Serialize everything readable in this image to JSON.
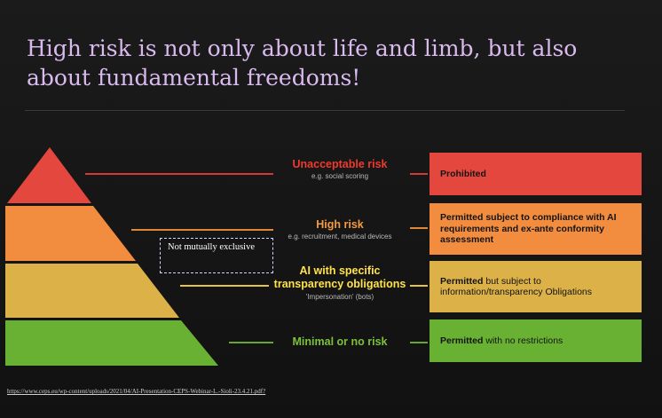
{
  "title": "High risk is not only about life and limb, but also about fundamental freedoms!",
  "colors": {
    "unacceptable": "#e4473e",
    "high": "#f28c3f",
    "specific": "#dcb148",
    "minimal": "#69b132",
    "unacceptable_text": "#ee3b2e",
    "high_text": "#f49a42",
    "specific_text": "#ffe24a",
    "minimal_text": "#7dc03a"
  },
  "levels": [
    {
      "label": "Unacceptable risk",
      "example": "e.g. social scoring",
      "box_bold": "Prohibited",
      "box_rest": ""
    },
    {
      "label": "High risk",
      "example": "e.g. recruitment, medical devices",
      "box_bold": "Permitted subject to compliance with AI requirements and ex-ante conformity assessment",
      "box_rest": ""
    },
    {
      "label": "AI with specific transparency obligations",
      "example": "'Impersonation' (bots)",
      "box_bold": "Permitted",
      "box_rest": " but subject to information/transparency Obligations"
    },
    {
      "label": "Minimal or no risk",
      "example": "",
      "box_bold": "Permitted",
      "box_rest": " with no restrictions"
    }
  ],
  "not_mutually_exclusive": "Not mutually exclusive",
  "source_url": "https://www.ceps.eu/wp-content/uploads/2021/04/AI-Presentation-CEPS-Webinar-L.-Sioli-23.4.21.pdf?"
}
